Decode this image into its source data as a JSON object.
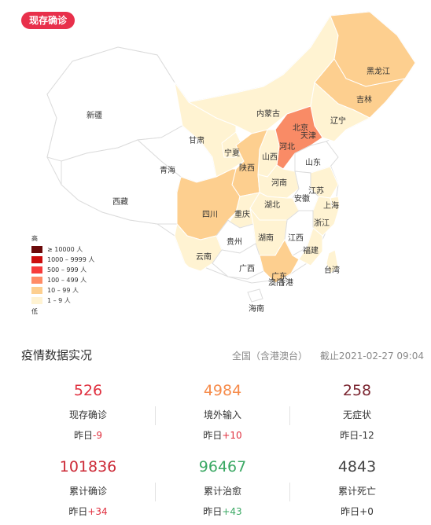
{
  "tag_label": "现存确诊",
  "map": {
    "provinces": [
      "黑龙江",
      "吉林",
      "辽宁",
      "内蒙古",
      "北京",
      "天津",
      "河北",
      "新疆",
      "甘肃",
      "宁夏",
      "山西",
      "山东",
      "青海",
      "陕西",
      "河南",
      "江苏",
      "西藏",
      "安徽",
      "上海",
      "湖北",
      "四川",
      "重庆",
      "浙江",
      "贵州",
      "江西",
      "湖南",
      "云南",
      "福建",
      "广西",
      "广东",
      "香港",
      "台湾",
      "海南",
      "澳门"
    ],
    "colors": {
      "c1": "#fff3d2",
      "c2": "#fdcf8f",
      "c3": "#f98b66",
      "none": "#ffffff"
    },
    "legend": {
      "high_label": "高",
      "low_label": "低",
      "items": [
        {
          "label": "≥ 10000 人",
          "color": "#6b0a0a"
        },
        {
          "label": "1000 – 9999 人",
          "color": "#cc0e0e"
        },
        {
          "label": "500 – 999 人",
          "color": "#f73b3b"
        },
        {
          "label": "100 – 499 人",
          "color": "#ff8b66"
        },
        {
          "label": "10 – 99 人",
          "color": "#fdcf8f"
        },
        {
          "label": "1 – 9 人",
          "color": "#fff3d2"
        }
      ]
    }
  },
  "section": {
    "title": "疫情数据实况",
    "scope": "全国（含港澳台）",
    "updated": "截止2021-02-27 09:04"
  },
  "stats": [
    {
      "value": "526",
      "label": "现存确诊",
      "delta_prefix": "昨日",
      "delta": "-9",
      "color": "#e0303f",
      "delta_color": "#e0303f"
    },
    {
      "value": "4984",
      "label": "境外输入",
      "delta_prefix": "昨日",
      "delta": "+10",
      "color": "#f68b4a",
      "delta_color": "#e0303f"
    },
    {
      "value": "258",
      "label": "无症状",
      "delta_prefix": "昨日",
      "delta": "-12",
      "color": "#7b2631",
      "delta_color": "#333333"
    },
    {
      "value": "101836",
      "label": "累计确诊",
      "delta_prefix": "昨日",
      "delta": "+34",
      "color": "#cc2936",
      "delta_color": "#e0303f"
    },
    {
      "value": "96467",
      "label": "累计治愈",
      "delta_prefix": "昨日",
      "delta": "+43",
      "color": "#3aa863",
      "delta_color": "#3aa863"
    },
    {
      "value": "4843",
      "label": "累计死亡",
      "delta_prefix": "昨日",
      "delta": "+0",
      "color": "#444444",
      "delta_color": "#333333"
    }
  ]
}
